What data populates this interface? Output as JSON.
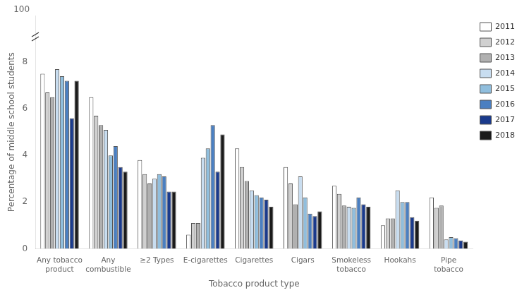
{
  "chart_data": {
    "type": "bar",
    "xlabel": "Tobacco product type",
    "ylabel": "Percentage of middle school students",
    "categories": [
      "Any tobacco\nproduct",
      "Any\ncombustible",
      "≥2 Types",
      "E-cigarettes",
      "Cigarettes",
      "Cigars",
      "Smokeless\ntobacco",
      "Hookahs",
      "Pipe\ntobacco"
    ],
    "series": [
      {
        "name": "2011",
        "color": "#ffffff",
        "values": [
          7.5,
          6.5,
          3.8,
          0.6,
          4.3,
          3.5,
          2.7,
          1.0,
          2.2
        ]
      },
      {
        "name": "2012",
        "color": "#d0d0d0",
        "values": [
          6.7,
          5.7,
          3.2,
          1.1,
          3.5,
          2.8,
          2.35,
          1.3,
          1.75
        ]
      },
      {
        "name": "2013",
        "color": "#b0b0b0",
        "values": [
          6.5,
          5.3,
          2.8,
          1.1,
          2.9,
          1.9,
          1.85,
          1.3,
          1.85
        ]
      },
      {
        "name": "2014",
        "color": "#c8ddf0",
        "values": [
          7.7,
          5.1,
          3.0,
          3.9,
          2.5,
          3.1,
          1.8,
          2.5,
          0.4
        ]
      },
      {
        "name": "2015",
        "color": "#90bedd",
        "values": [
          7.4,
          4.0,
          3.2,
          4.3,
          2.3,
          2.2,
          1.75,
          2.0,
          0.5
        ]
      },
      {
        "name": "2016",
        "color": "#4a7fc1",
        "values": [
          7.2,
          4.4,
          3.1,
          5.3,
          2.2,
          1.5,
          2.2,
          2.0,
          0.45
        ]
      },
      {
        "name": "2017",
        "color": "#1a3a8c",
        "values": [
          5.6,
          3.5,
          2.45,
          3.3,
          2.1,
          1.4,
          1.9,
          1.35,
          0.35
        ]
      },
      {
        "name": "2018",
        "color": "#1a1a1a",
        "values": [
          7.2,
          3.3,
          2.45,
          4.9,
          1.8,
          1.6,
          1.8,
          1.2,
          0.3
        ]
      }
    ],
    "ylim": [
      0,
      10
    ],
    "yticks": [
      0,
      2,
      4,
      6,
      8
    ],
    "annotations": [
      "100"
    ],
    "grid": false,
    "legend": "upper right"
  }
}
